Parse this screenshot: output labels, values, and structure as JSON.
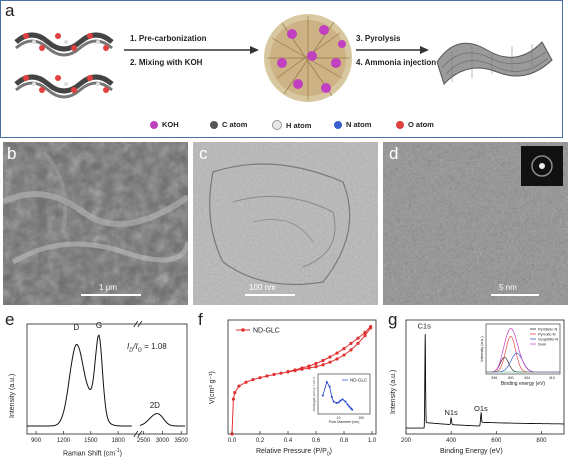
{
  "panel_a": {
    "letter": "a",
    "steps": [
      "1. Pre-carbonization",
      "2. Mixing with KOH",
      "3. Pyrolysis",
      "4. Ammonia injection"
    ],
    "legend": [
      {
        "label": "KOH",
        "color": "#c040c0"
      },
      {
        "label": "C atom",
        "color": "#555555"
      },
      {
        "label": "H atom",
        "color": "#e6e6e6"
      },
      {
        "label": "N atom",
        "color": "#3a5fcd"
      },
      {
        "label": "O atom",
        "color": "#e04040"
      }
    ]
  },
  "panel_b": {
    "letter": "b",
    "scale": "1 μm"
  },
  "panel_c": {
    "letter": "c",
    "scale": "100 nm"
  },
  "panel_d": {
    "letter": "d",
    "scale": "5 nm"
  },
  "panel_e": {
    "letter": "e",
    "ratio_label": "I",
    "ratio_sub1": "D",
    "ratio_mid": "/I",
    "ratio_sub2": "G",
    "ratio_value": " = 1.08",
    "ylabel": "Intensity (a.u.)",
    "xlabel": "Raman Shift (cm",
    "xlabel_sup": "-1",
    "xlabel_end": ")"
  },
  "panel_f": {
    "letter": "f",
    "ylabel": "V(cm³ g⁻¹)",
    "xlabel": "Relative Pressure (P/P",
    "xlabel_sub": "0",
    "xlabel_end": ")",
    "inset_ylabel": "dV/dlog(D) (cm³ g⁻¹ nm⁻¹)",
    "inset_xlabel": "Pore Diameter (nm)"
  },
  "panel_g": {
    "letter": "g",
    "ylabel": "Intensity (a.u.)",
    "xlabel": "Binding Energy (eV)",
    "inset_ylabel": "Intensity (a.u.)",
    "inset_xlabel": "Binding energy (eV)"
  },
  "chart_data": [
    {
      "id": "raman",
      "type": "line",
      "xlabel": "Raman Shift (cm-1)",
      "ylabel": "Intensity (a.u.)",
      "x_ticks_left": [
        "900",
        "1200",
        "1500",
        "1800"
      ],
      "x_ticks_right": [
        "2500",
        "3000",
        "3500"
      ],
      "peaks": [
        {
          "label": "D",
          "x": 1340
        },
        {
          "label": "G",
          "x": 1590
        },
        {
          "label": "2D",
          "x": 2800
        }
      ],
      "annotation": "ID/IG = 1.08",
      "line_color": "#111111"
    },
    {
      "id": "bet",
      "type": "line",
      "series": [
        {
          "name": "ND-GLC",
          "color": "#e03030"
        }
      ],
      "x": [
        0.0,
        0.01,
        0.02,
        0.05,
        0.1,
        0.15,
        0.2,
        0.25,
        0.3,
        0.35,
        0.4,
        0.45,
        0.5,
        0.55,
        0.6,
        0.65,
        0.7,
        0.75,
        0.8,
        0.85,
        0.9,
        0.95,
        0.99
      ],
      "y": [
        0,
        270,
        320,
        370,
        400,
        420,
        435,
        448,
        460,
        470,
        480,
        490,
        500,
        510,
        520,
        535,
        555,
        580,
        610,
        650,
        700,
        760,
        820
      ],
      "desorption_y": [
        null,
        null,
        null,
        null,
        null,
        null,
        null,
        null,
        null,
        null,
        482,
        495,
        510,
        525,
        545,
        568,
        595,
        625,
        660,
        700,
        740,
        785,
        830
      ],
      "xlim": [
        0,
        1.0
      ],
      "ylim": [
        0,
        850
      ],
      "x_ticks": [
        "0.0",
        "0.2",
        "0.4",
        "0.6",
        "0.8",
        "1.0"
      ],
      "xlabel": "Relative Pressure (P/P0)",
      "ylabel": "V(cm3 g-1)",
      "legend": "top-left",
      "inset": {
        "series": [
          {
            "name": "ND-GLC",
            "color": "#2040d0"
          }
        ],
        "x": [
          2,
          3,
          4,
          5,
          6,
          8,
          10,
          12,
          15,
          20,
          25,
          30,
          35,
          40
        ],
        "y": [
          0.55,
          1.0,
          0.85,
          0.5,
          0.35,
          0.3,
          0.32,
          0.38,
          0.42,
          0.35,
          0.25,
          0.18,
          0.12,
          0.08
        ],
        "x_ticks": [
          "10",
          "100"
        ],
        "xlabel": "Pore Diameter (nm)",
        "ylabel": "dV/dlog(D) (cm3 g-1 nm-1)",
        "legend": "top-right"
      }
    },
    {
      "id": "xps",
      "type": "line",
      "xlim": [
        200,
        900
      ],
      "x_ticks": [
        "200",
        "400",
        "600",
        "800"
      ],
      "xlabel": "Binding Energy (eV)",
      "ylabel": "Intensity (a.u.)",
      "peaks": [
        {
          "label": "C1s",
          "x": 285,
          "h": 1.0
        },
        {
          "label": "N1s",
          "x": 400,
          "h": 0.08
        },
        {
          "label": "O1s",
          "x": 532,
          "h": 0.12
        }
      ],
      "inset": {
        "x_ticks": [
          "396",
          "400",
          "404",
          "410"
        ],
        "xlabel": "Binding energy (eV)",
        "ylabel": "Intensity (a.u.)",
        "legend": "top-right",
        "series": [
          {
            "name": "Pyridinic-N",
            "color": "#111111"
          },
          {
            "name": "Pyrrolic-N",
            "color": "#e03030"
          },
          {
            "name": "Graphitic-N",
            "color": "#2040d0"
          },
          {
            "name": "Sum",
            "color": "#c040c0"
          }
        ]
      }
    }
  ]
}
